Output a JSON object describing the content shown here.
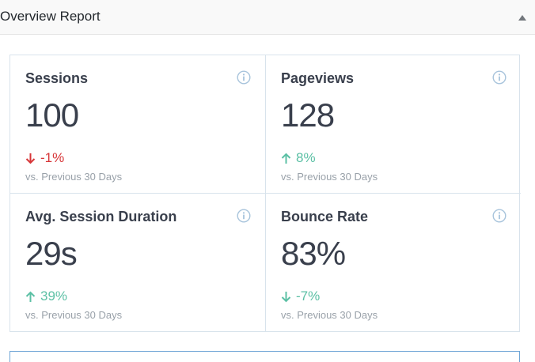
{
  "panel": {
    "title": "Overview Report"
  },
  "icons": {
    "collapse": "triangle-up-icon",
    "info": "info-circle-icon",
    "arrow_up": "arrow-up-icon",
    "arrow_down": "arrow-down-icon"
  },
  "colors": {
    "negative": "#d73638",
    "positive": "#5cc0a5",
    "muted": "#99a1a9",
    "info_icon": "#a8c4dc"
  },
  "metrics": [
    {
      "label": "Sessions",
      "value": "100",
      "change": "-1%",
      "direction": "down",
      "compare": "vs. Previous 30 Days"
    },
    {
      "label": "Pageviews",
      "value": "128",
      "change": "8%",
      "direction": "up",
      "compare": "vs. Previous 30 Days"
    },
    {
      "label": "Avg. Session Duration",
      "value": "29s",
      "change": "39%",
      "direction": "up",
      "compare": "vs. Previous 30 Days"
    },
    {
      "label": "Bounce Rate",
      "value": "83%",
      "change": "-7%",
      "direction": "down",
      "compare": "vs. Previous 30 Days"
    }
  ]
}
